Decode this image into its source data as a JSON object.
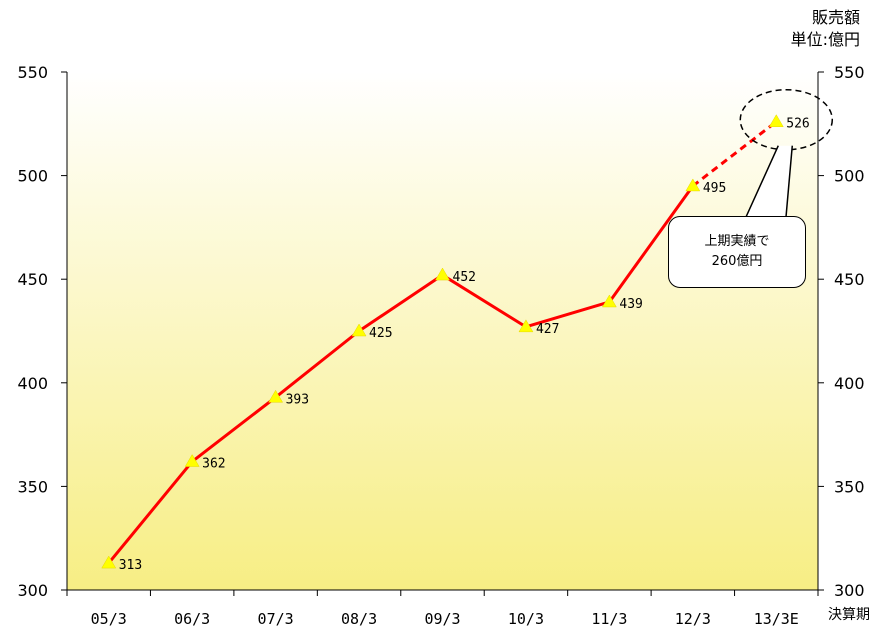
{
  "unit": {
    "title": "販売額",
    "text": "単位:億円"
  },
  "callout": {
    "line1": "上期実績で",
    "line2": "260億円"
  },
  "chart_data": {
    "type": "line",
    "title": "",
    "xlabel": "決算期",
    "ylabel": "販売額",
    "unit": "単位:億円",
    "categories": [
      "05/3",
      "06/3",
      "07/3",
      "08/3",
      "09/3",
      "10/3",
      "11/3",
      "12/3",
      "13/3E"
    ],
    "series": [
      {
        "values": [
          313,
          362,
          393,
          425,
          452,
          427,
          439,
          495,
          526
        ],
        "color": "#ff0000",
        "marker_color": "#ffff00",
        "forecast_from_index": 7
      }
    ],
    "ylim": [
      300,
      550
    ],
    "yticks": [
      300,
      350,
      400,
      450,
      500,
      550
    ],
    "dual_y_axis": true,
    "grid": false,
    "background_gradient": [
      "#fbf7b0",
      "#ffffff"
    ]
  }
}
